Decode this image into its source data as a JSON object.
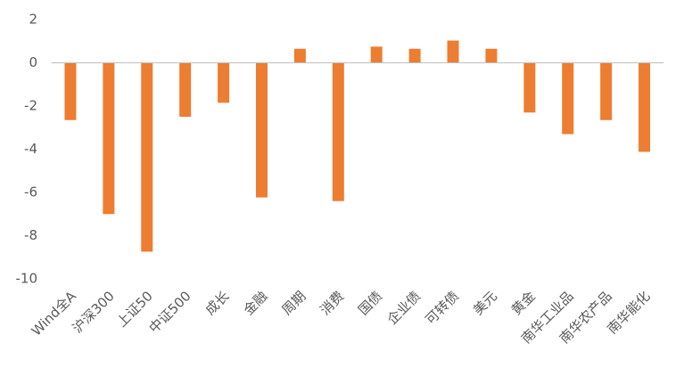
{
  "chart_data": {
    "type": "bar",
    "categories": [
      "Wind全A",
      "沪深300",
      "上证50",
      "中证500",
      "成长",
      "金融",
      "周期",
      "消费",
      "国债",
      "企业债",
      "可转债",
      "美元",
      "黄金",
      "南华工业品",
      "南华农产品",
      "南华能化"
    ],
    "values": [
      -2.65,
      -7.0,
      -8.74,
      -2.5,
      -1.85,
      -6.23,
      0.65,
      -6.4,
      0.75,
      0.65,
      1.03,
      0.65,
      -2.3,
      -3.3,
      -2.65,
      -4.12
    ],
    "color": "#ed7d31",
    "ylim": [
      -10,
      2
    ],
    "yticks": [
      -10,
      -8,
      -6,
      -4,
      -2,
      0,
      2
    ],
    "grid": false
  }
}
